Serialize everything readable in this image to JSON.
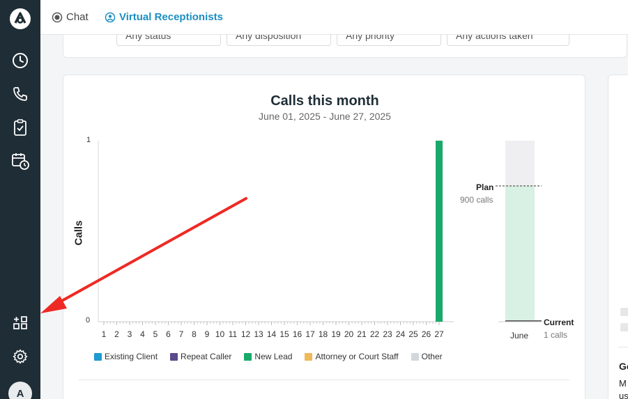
{
  "sidebar": {
    "avatar_initial": "A",
    "items": [
      {
        "icon": "logo-icon"
      },
      {
        "icon": "clock-icon"
      },
      {
        "icon": "phone-icon"
      },
      {
        "icon": "clipboard-check-icon"
      },
      {
        "icon": "calendar-clock-icon"
      },
      {
        "icon": "apps-grid-icon"
      },
      {
        "icon": "gear-icon"
      }
    ]
  },
  "header": {
    "tabs": [
      {
        "label": "Chat",
        "icon": "chat-bubble-icon"
      },
      {
        "label": "Virtual Receptionists",
        "icon": "receptionist-icon",
        "active": true
      }
    ]
  },
  "filters": {
    "status": "Any status",
    "disposition": "Any disposition",
    "priority": "Any priority",
    "actions": "Any actions taken"
  },
  "chart": {
    "title": "Calls this month",
    "subtitle": "June 01, 2025 - June 27, 2025"
  },
  "chart_data": {
    "type": "bar",
    "ylabel": "Calls",
    "ylim": [
      0,
      1
    ],
    "yticks": [
      "0",
      "1"
    ],
    "categories": [
      "1",
      "2",
      "3",
      "4",
      "5",
      "6",
      "7",
      "8",
      "9",
      "10",
      "11",
      "12",
      "13",
      "14",
      "15",
      "16",
      "17",
      "18",
      "19",
      "20",
      "21",
      "22",
      "23",
      "24",
      "25",
      "26",
      "27"
    ],
    "series": [
      {
        "name": "Existing Client",
        "color": "#1f9bd1",
        "values": [
          0,
          0,
          0,
          0,
          0,
          0,
          0,
          0,
          0,
          0,
          0,
          0,
          0,
          0,
          0,
          0,
          0,
          0,
          0,
          0,
          0,
          0,
          0,
          0,
          0,
          0,
          0
        ]
      },
      {
        "name": "Repeat Caller",
        "color": "#5b4a8a",
        "values": [
          0,
          0,
          0,
          0,
          0,
          0,
          0,
          0,
          0,
          0,
          0,
          0,
          0,
          0,
          0,
          0,
          0,
          0,
          0,
          0,
          0,
          0,
          0,
          0,
          0,
          0,
          0
        ]
      },
      {
        "name": "New Lead",
        "color": "#1aa96b",
        "values": [
          0,
          0,
          0,
          0,
          0,
          0,
          0,
          0,
          0,
          0,
          0,
          0,
          0,
          0,
          0,
          0,
          0,
          0,
          0,
          0,
          0,
          0,
          0,
          0,
          0,
          0,
          1
        ]
      },
      {
        "name": "Attorney or Court Staff",
        "color": "#f0b95a",
        "values": [
          0,
          0,
          0,
          0,
          0,
          0,
          0,
          0,
          0,
          0,
          0,
          0,
          0,
          0,
          0,
          0,
          0,
          0,
          0,
          0,
          0,
          0,
          0,
          0,
          0,
          0,
          0
        ]
      },
      {
        "name": "Other",
        "color": "#d3d6da",
        "values": [
          0,
          0,
          0,
          0,
          0,
          0,
          0,
          0,
          0,
          0,
          0,
          0,
          0,
          0,
          0,
          0,
          0,
          0,
          0,
          0,
          0,
          0,
          0,
          0,
          0,
          0,
          0
        ]
      }
    ],
    "legend": "bottom"
  },
  "plan": {
    "month": "June",
    "plan_label": "Plan",
    "plan_value": "900 calls",
    "current_label": "Current",
    "current_value": "1 calls",
    "plan_calls": 900,
    "current_calls": 1,
    "colors": {
      "bg": "#efeff1",
      "fill": "#d9f0e4",
      "line": "#555555"
    }
  },
  "right_panel": {
    "heading": "Go",
    "line1": "M",
    "line2": "us"
  },
  "annotation": {
    "arrow_color": "#ee2a24"
  }
}
